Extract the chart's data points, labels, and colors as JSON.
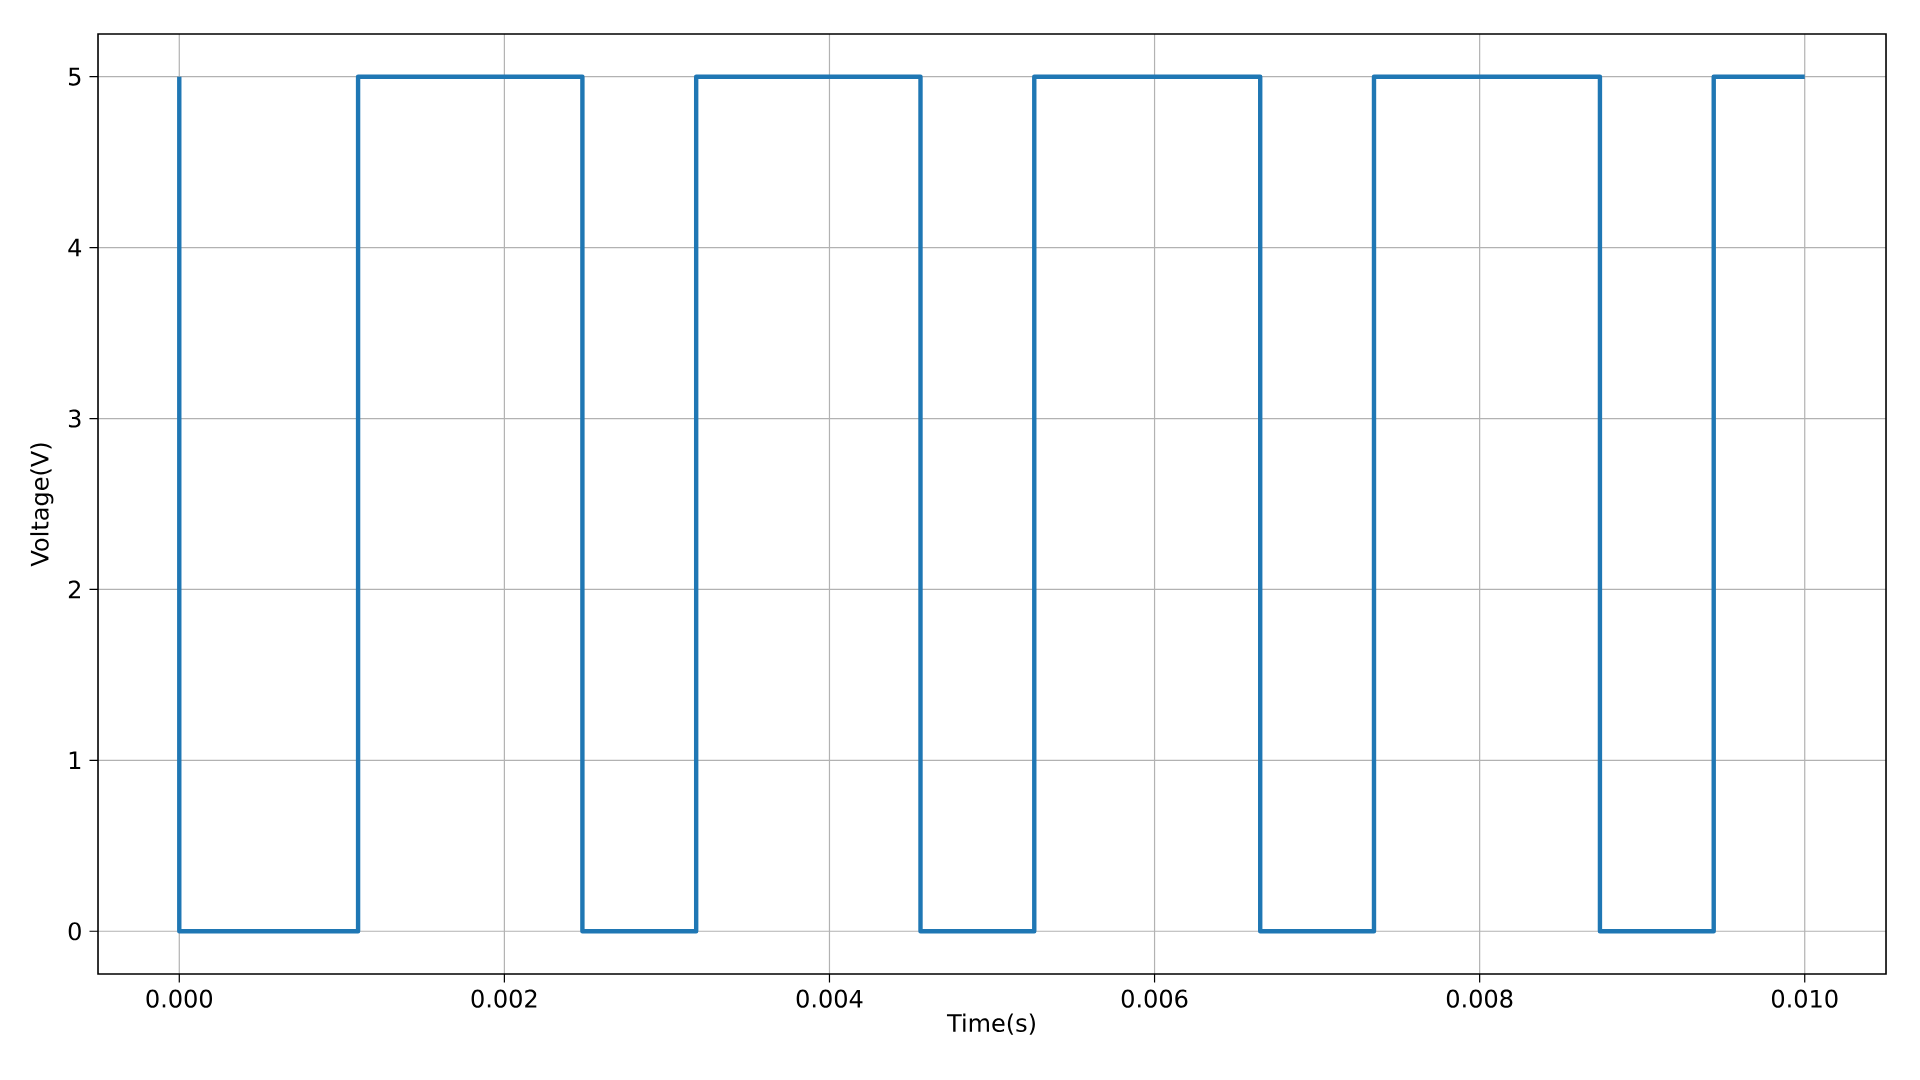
{
  "chart_data": {
    "type": "line",
    "xlabel": "Time(s)",
    "ylabel": "Voltage(V)",
    "series": [
      {
        "color": "#1f77b4",
        "x": [
          0,
          0,
          0.0011,
          0.0011,
          0.00248,
          0.00248,
          0.00318,
          0.00318,
          0.00456,
          0.00456,
          0.00526,
          0.00526,
          0.00665,
          0.00665,
          0.00735,
          0.00735,
          0.00874,
          0.00874,
          0.00944,
          0.00944,
          0.01
        ],
        "values": [
          5,
          0,
          0,
          5,
          5,
          0,
          0,
          5,
          5,
          0,
          0,
          5,
          5,
          0,
          0,
          5,
          5,
          0,
          0,
          5,
          5
        ]
      }
    ],
    "xlim": [
      -0.0005,
      0.0105
    ],
    "ylim": [
      -0.25,
      5.25
    ],
    "xticks": [
      {
        "value": 0,
        "label": "0.000"
      },
      {
        "value": 0.002,
        "label": "0.002"
      },
      {
        "value": 0.004,
        "label": "0.004"
      },
      {
        "value": 0.006,
        "label": "0.006"
      },
      {
        "value": 0.008,
        "label": "0.008"
      },
      {
        "value": 0.01,
        "label": "0.010"
      }
    ],
    "yticks": [
      0,
      1,
      2,
      3,
      4,
      5
    ],
    "grid": true,
    "marker": "none",
    "line_style": "solid"
  }
}
